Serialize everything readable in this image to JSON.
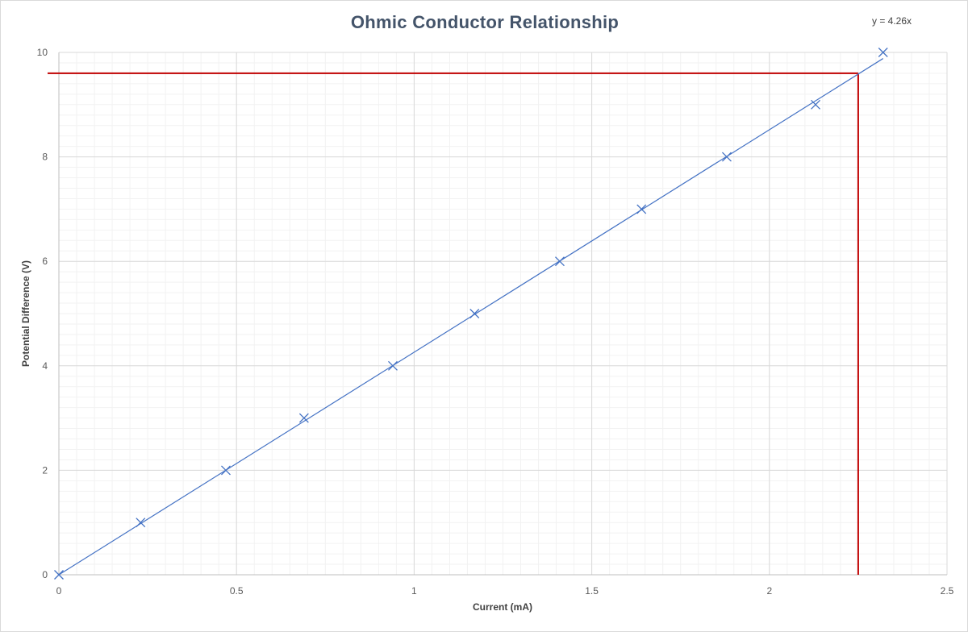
{
  "chart_data": {
    "type": "scatter",
    "title": "Ohmic Conductor Relationship",
    "xlabel": "Current  (mA)",
    "ylabel": "Potential Difference (V)",
    "xlim": [
      0,
      2.5
    ],
    "ylim": [
      0,
      10
    ],
    "x_ticks": [
      "0",
      "0.5",
      "1",
      "1.5",
      "2",
      "2.5"
    ],
    "y_ticks": [
      "0",
      "2",
      "4",
      "6",
      "8",
      "10"
    ],
    "grid": "on (major and minor)",
    "legend": "none",
    "series": [
      {
        "marker": "x",
        "color": "#4472c4",
        "x": [
          0,
          0.23,
          0.47,
          0.69,
          0.94,
          1.17,
          1.41,
          1.64,
          1.88,
          2.13,
          2.32
        ],
        "y": [
          0,
          1,
          2,
          3,
          4,
          5,
          6,
          7,
          8,
          9,
          10
        ]
      }
    ],
    "trendline": {
      "type": "linear",
      "equation": "y = 4.26x",
      "slope": 4.26,
      "x_range": [
        0,
        2.32
      ],
      "color": "#4472c4"
    },
    "reference_lines": {
      "color": "#c00000",
      "horizontal_y": 9.6,
      "vertical_x": 2.25
    }
  }
}
